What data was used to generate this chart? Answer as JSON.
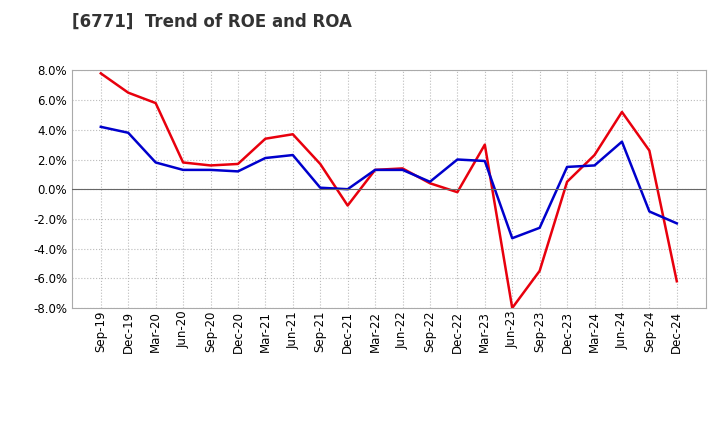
{
  "title": "[6771]  Trend of ROE and ROA",
  "labels": [
    "Sep-19",
    "Dec-19",
    "Mar-20",
    "Jun-20",
    "Sep-20",
    "Dec-20",
    "Mar-21",
    "Jun-21",
    "Sep-21",
    "Dec-21",
    "Mar-22",
    "Jun-22",
    "Sep-22",
    "Dec-22",
    "Mar-23",
    "Jun-23",
    "Sep-23",
    "Dec-23",
    "Mar-24",
    "Jun-24",
    "Sep-24",
    "Dec-24"
  ],
  "ROE": [
    7.8,
    6.5,
    5.8,
    1.8,
    1.6,
    1.7,
    3.4,
    3.7,
    1.7,
    -1.1,
    1.3,
    1.4,
    0.4,
    -0.2,
    3.0,
    -8.0,
    -5.5,
    0.5,
    2.3,
    5.2,
    2.6,
    -6.2
  ],
  "ROA": [
    4.2,
    3.8,
    1.8,
    1.3,
    1.3,
    1.2,
    2.1,
    2.3,
    0.1,
    0.0,
    1.3,
    1.3,
    0.5,
    2.0,
    1.9,
    -3.3,
    -2.6,
    1.5,
    1.6,
    3.2,
    -1.5,
    -2.3
  ],
  "ROE_color": "#e8000d",
  "ROA_color": "#0000cc",
  "bg_color": "#ffffff",
  "plot_bg_color": "#ffffff",
  "grid_color": "#bbbbbb",
  "ylim": [
    -8.0,
    8.0
  ],
  "yticks": [
    -8.0,
    -6.0,
    -4.0,
    -2.0,
    0.0,
    2.0,
    4.0,
    6.0,
    8.0
  ],
  "title_fontsize": 12,
  "legend_fontsize": 10,
  "tick_fontsize": 8.5
}
